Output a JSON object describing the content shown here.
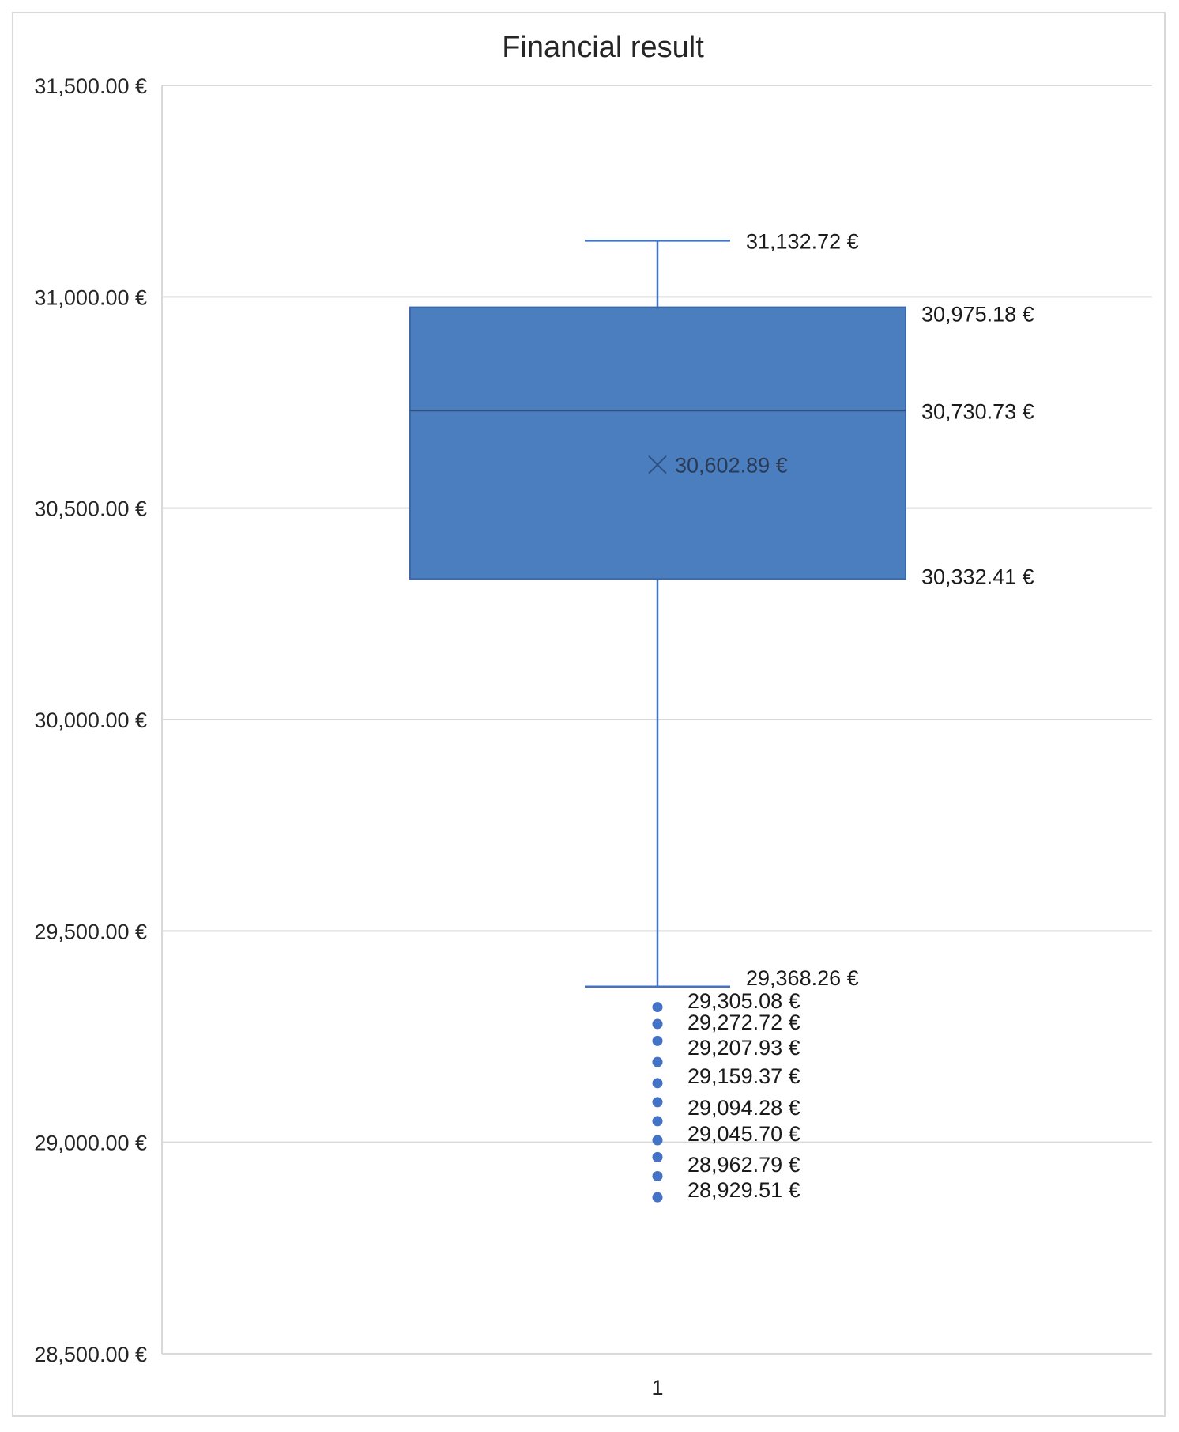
{
  "chart_data": {
    "type": "box",
    "title": "Financial result",
    "ylim": [
      28500,
      31500
    ],
    "y_ticks": [
      31500,
      31000,
      30500,
      30000,
      29500,
      29000,
      28500
    ],
    "y_tick_labels": [
      "31,500.00 €",
      "31,000.00 €",
      "30,500.00 €",
      "30,000.00 €",
      "29,500.00 €",
      "29,000.00 €",
      "28,500.00 €"
    ],
    "categories": [
      "1"
    ],
    "grid": true,
    "box": {
      "whisker_high": 31132.72,
      "q3": 30975.18,
      "median": 30730.73,
      "mean": 30602.89,
      "q1": 30332.41,
      "whisker_low": 29368.26,
      "labels": {
        "whisker_high": "31,132.72 €",
        "q3": "30,975.18 €",
        "median": "30,730.73 €",
        "mean": "30,602.89 €",
        "q1": "30,332.41 €",
        "whisker_low": "29,368.26 €"
      }
    },
    "outliers": [
      29320,
      29280,
      29240,
      29190,
      29140,
      29095,
      29050,
      29005,
      28965,
      28920,
      28870
    ],
    "outlier_labels": [
      {
        "value": 29305.08,
        "text": "29,305.08 €"
      },
      {
        "value": 29272.72,
        "text": "29,272.72 €"
      },
      {
        "value": 29207.93,
        "text": "29,207.93 €"
      },
      {
        "value": 29159.37,
        "text": "29,159.37 €"
      },
      {
        "value": 29094.28,
        "text": "29,094.28 €"
      },
      {
        "value": 29045.7,
        "text": "29,045.70 €"
      },
      {
        "value": 28962.79,
        "text": "28,962.79 €"
      },
      {
        "value": 28929.51,
        "text": "28,929.51 €"
      }
    ],
    "colors": {
      "box_fill": "#4a7ebf",
      "box_edge": "#3a68a8",
      "whisker": "#4472c4",
      "outlier": "#4472c4",
      "grid": "#d9d9d9"
    }
  }
}
